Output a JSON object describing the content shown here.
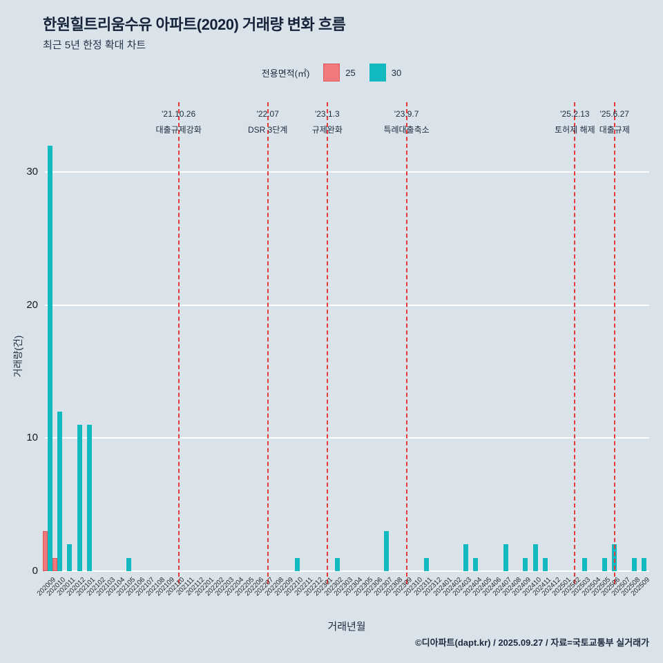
{
  "header": {
    "title": "한원힐트리움수유 아파트(2020) 거래량 변화 흐름",
    "subtitle": "최근 5년 한정 확대 차트"
  },
  "legend": {
    "label": "전용면적(㎡)",
    "items": [
      {
        "label": "25",
        "color": "#f2797b"
      },
      {
        "label": "30",
        "color": "#12b9bf"
      }
    ]
  },
  "chart_data": {
    "type": "bar",
    "title": "한원힐트리움수유 아파트(2020) 거래량 변화 흐름",
    "xlabel": "거래년월",
    "ylabel": "거래량(건)",
    "ylim": [
      0,
      32.3
    ],
    "yticks": [
      0,
      10,
      20,
      30
    ],
    "grid": "horizontal-white",
    "legend_position": "top-center",
    "background_color": "#d9e3e9",
    "gridline_color": "#ffffff",
    "event_line_color": "#e5383b",
    "categories": [
      "202009",
      "202010",
      "202011",
      "202012",
      "202101",
      "202102",
      "202103",
      "202104",
      "202105",
      "202106",
      "202107",
      "202108",
      "202109",
      "202110",
      "202111",
      "202112",
      "202201",
      "202202",
      "202203",
      "202204",
      "202205",
      "202206",
      "202207",
      "202208",
      "202209",
      "202210",
      "202211",
      "202212",
      "202301",
      "202302",
      "202303",
      "202304",
      "202305",
      "202306",
      "202307",
      "202308",
      "202309",
      "202310",
      "202311",
      "202312",
      "202401",
      "202402",
      "202403",
      "202404",
      "202405",
      "202406",
      "202407",
      "202408",
      "202409",
      "202410",
      "202411",
      "202412",
      "202501",
      "202502",
      "202503",
      "202504",
      "202505",
      "202506",
      "202507",
      "202508",
      "202509"
    ],
    "series": [
      {
        "name": "25",
        "color": "#f2797b",
        "border_color": "#e0565a",
        "values": [
          3,
          1,
          0,
          0,
          0,
          0,
          0,
          0,
          0,
          0,
          0,
          0,
          0,
          0,
          0,
          0,
          0,
          0,
          0,
          0,
          0,
          0,
          0,
          0,
          0,
          0,
          0,
          0,
          0,
          0,
          0,
          0,
          0,
          0,
          0,
          0,
          0,
          0,
          0,
          0,
          0,
          0,
          0,
          0,
          0,
          0,
          0,
          0,
          0,
          0,
          0,
          0,
          0,
          0,
          0,
          0,
          0,
          0,
          0,
          0,
          0
        ]
      },
      {
        "name": "30",
        "color": "#12b9bf",
        "border_color": "#12b9bf",
        "values": [
          32,
          12,
          2,
          11,
          11,
          0,
          0,
          0,
          1,
          0,
          0,
          0,
          0,
          0,
          0,
          0,
          0,
          0,
          0,
          0,
          0,
          0,
          0,
          0,
          0,
          1,
          0,
          0,
          0,
          1,
          0,
          0,
          0,
          0,
          3,
          0,
          0,
          0,
          1,
          0,
          0,
          0,
          2,
          1,
          0,
          0,
          2,
          0,
          1,
          2,
          1,
          0,
          0,
          0,
          1,
          0,
          1,
          2,
          0,
          1,
          1
        ]
      }
    ],
    "events": [
      {
        "month": "202110",
        "date": "'21.10.26",
        "label": "대출규제강화"
      },
      {
        "month": "202207",
        "date": "'22.07",
        "label": "DSR 3단계"
      },
      {
        "month": "202301",
        "date": "'23.1.3",
        "label": "규제완화"
      },
      {
        "month": "202309",
        "date": "'23.9.7",
        "label": "특례대출축소"
      },
      {
        "month": "202502",
        "date": "'25.2.13",
        "label": "토허제 해제"
      },
      {
        "month": "202506",
        "date": "'25.6.27",
        "label": "대출규제"
      }
    ]
  },
  "footer": {
    "credit": "©디아파트(dapt.kr) / 2025.09.27 / 자료=국토교통부 실거래가"
  }
}
